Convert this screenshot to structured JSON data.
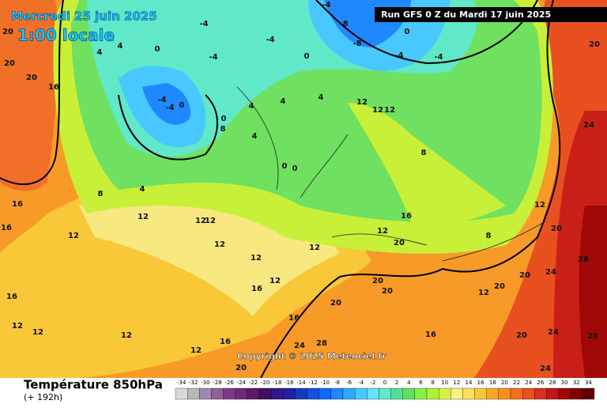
{
  "header": {
    "date": "Mercredi 25 juin 2025",
    "time": "1:00 locale",
    "run": "Run GFS 0 Z du Mardi 17 juin 2025"
  },
  "footer": {
    "title": "Température 850hPa",
    "subtitle": "(+ 192h)",
    "copyright": "Copyright © 2025 Meteociel.fr"
  },
  "scale": {
    "values": [
      -34,
      -32,
      -30,
      -28,
      -26,
      -24,
      -22,
      -20,
      -18,
      -16,
      -14,
      -12,
      -10,
      -8,
      -6,
      -4,
      -2,
      0,
      2,
      4,
      6,
      8,
      10,
      12,
      14,
      16,
      18,
      20,
      22,
      24,
      26,
      28,
      30,
      32,
      34
    ],
    "colors": [
      "#d8d8d8",
      "#b8b8b8",
      "#a088b0",
      "#906098",
      "#803888",
      "#702878",
      "#601868",
      "#401060",
      "#301888",
      "#2020a0",
      "#1838c0",
      "#1050e0",
      "#1068f8",
      "#2088ff",
      "#30a8ff",
      "#48c8ff",
      "#68e0f8",
      "#60e8c8",
      "#50e098",
      "#60e060",
      "#88f048",
      "#b0f038",
      "#d8f048",
      "#f8f080",
      "#f8e060",
      "#f8c838",
      "#f8a828",
      "#f89020",
      "#f07020",
      "#e85020",
      "#d83020",
      "#c01818",
      "#a00808",
      "#800000",
      "#600000"
    ]
  },
  "map_labels": [
    20,
    20,
    20,
    16,
    16,
    16,
    12,
    12,
    12,
    12,
    12,
    12,
    12,
    16,
    12,
    16,
    20,
    20,
    20,
    20,
    16,
    12,
    8,
    8,
    12,
    20,
    20,
    20,
    24,
    28,
    24,
    20,
    24,
    28,
    24,
    20,
    16,
    28,
    24,
    20,
    16,
    12,
    12,
    12,
    16,
    12,
    8,
    4,
    4,
    -4,
    -4,
    0,
    0,
    4,
    4,
    4,
    0,
    0,
    12,
    12,
    12,
    4,
    8,
    -4,
    -8,
    -8,
    -4,
    -4,
    0,
    0,
    -4,
    -4,
    0,
    -4,
    4,
    12
  ]
}
